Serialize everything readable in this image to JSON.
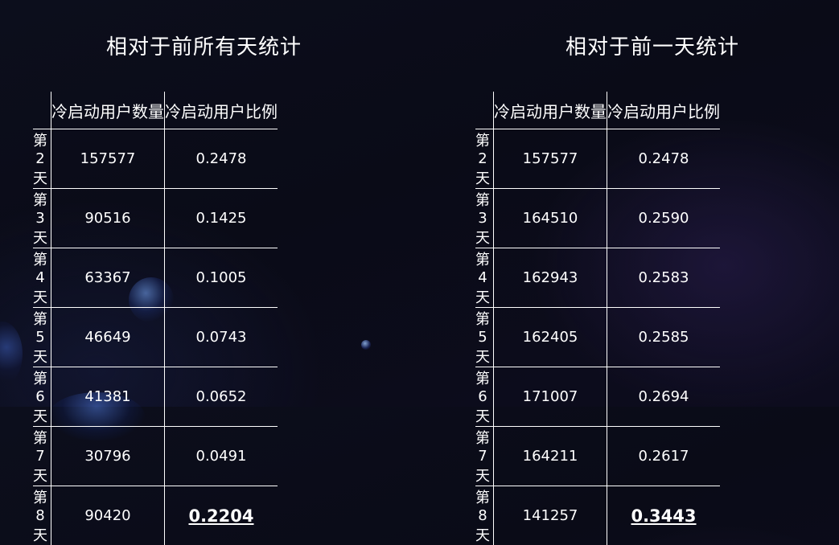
{
  "left": {
    "title": "相对于前所有天统计",
    "headers": [
      "",
      "冷启动用户数量",
      "冷启动用户比例"
    ],
    "rows": [
      {
        "day": "第2天",
        "count": "157577",
        "ratio": "0.2478"
      },
      {
        "day": "第3天",
        "count": "90516",
        "ratio": "0.1425"
      },
      {
        "day": "第4天",
        "count": "63367",
        "ratio": "0.1005"
      },
      {
        "day": "第5天",
        "count": "46649",
        "ratio": "0.0743"
      },
      {
        "day": "第6天",
        "count": "41381",
        "ratio": "0.0652"
      },
      {
        "day": "第7天",
        "count": "30796",
        "ratio": "0.0491"
      },
      {
        "day": "第8天",
        "count": "90420",
        "ratio": "0.2204"
      }
    ]
  },
  "right": {
    "title": "相对于前一天统计",
    "headers": [
      "",
      "冷启动用户数量",
      "冷启动用户比例"
    ],
    "rows": [
      {
        "day": "第2天",
        "count": "157577",
        "ratio": "0.2478"
      },
      {
        "day": "第3天",
        "count": "164510",
        "ratio": "0.2590"
      },
      {
        "day": "第4天",
        "count": "162943",
        "ratio": "0.2583"
      },
      {
        "day": "第5天",
        "count": "162405",
        "ratio": "0.2585"
      },
      {
        "day": "第6天",
        "count": "171007",
        "ratio": "0.2694"
      },
      {
        "day": "第7天",
        "count": "164211",
        "ratio": "0.2617"
      },
      {
        "day": "第8天",
        "count": "141257",
        "ratio": "0.3443"
      }
    ]
  },
  "colors": {
    "background": "#0b0c19",
    "text": "#ffffff",
    "rule": "#ffffff"
  }
}
